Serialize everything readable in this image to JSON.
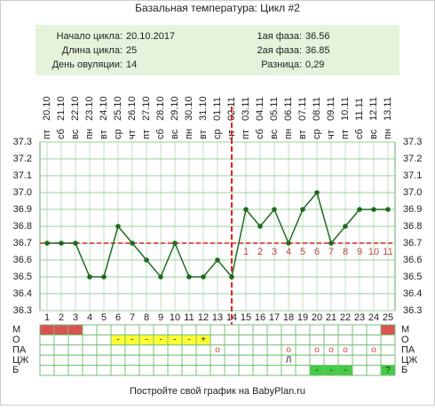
{
  "title": "Базальная температура: Цикл #2",
  "info": {
    "left": [
      {
        "label": "Начало цикла:",
        "value": "20.10.2017"
      },
      {
        "label": "Длина цикла:",
        "value": "25"
      },
      {
        "label": "День овуляции:",
        "value": "14"
      }
    ],
    "right": [
      {
        "label": "1ая фаза:",
        "value": "36.56"
      },
      {
        "label": "2ая фаза:",
        "value": "36.85"
      },
      {
        "label": "Разница:",
        "value": "0,29"
      }
    ]
  },
  "chart_data": {
    "type": "line",
    "x": [
      1,
      2,
      3,
      4,
      5,
      6,
      7,
      8,
      9,
      10,
      11,
      12,
      13,
      14,
      15,
      16,
      17,
      18,
      19,
      20,
      21,
      22,
      23,
      24,
      25
    ],
    "dates": [
      "20.10",
      "21.10",
      "22.10",
      "23.10",
      "24.10",
      "25.10",
      "26.10",
      "27.10",
      "28.10",
      "29.10",
      "30.10",
      "31.10",
      "01.11",
      "02.11",
      "03.11",
      "04.11",
      "05.11",
      "06.11",
      "07.11",
      "08.11",
      "09.11",
      "10.11",
      "11.11",
      "12.11",
      "13.11"
    ],
    "weekdays": [
      "пт",
      "сб",
      "вс",
      "пн",
      "вт",
      "ср",
      "чт",
      "пт",
      "сб",
      "вс",
      "пн",
      "вт",
      "ср",
      "чт",
      "пт",
      "сб",
      "вс",
      "пн",
      "вт",
      "ср",
      "чт",
      "пт",
      "сб",
      "вс",
      "пн"
    ],
    "values": [
      36.7,
      36.7,
      36.7,
      36.5,
      36.5,
      36.8,
      36.7,
      36.6,
      36.5,
      36.7,
      36.5,
      36.5,
      36.6,
      36.5,
      36.9,
      36.8,
      36.9,
      36.7,
      36.9,
      37.0,
      36.7,
      36.8,
      36.9,
      36.9,
      36.9
    ],
    "color": "#1e6b1e",
    "ylim": [
      36.3,
      37.3
    ],
    "yticks": [
      36.3,
      36.4,
      36.5,
      36.6,
      36.7,
      36.8,
      36.9,
      {
        "value": 37,
        "label": "37.0"
      },
      37.1,
      37.2,
      37.3
    ],
    "grid": true,
    "coverline": 36.7,
    "ovulation_day": 14,
    "line_color": "#e02020",
    "luteal_days": [
      1,
      2,
      3,
      4,
      5,
      6,
      7,
      8,
      9,
      10,
      11
    ]
  },
  "table": {
    "rows": [
      {
        "label": "М",
        "cells": [
          {
            "fill": "#d9534f"
          },
          {
            "fill": "#d9534f"
          },
          {
            "fill": "#d9534f"
          },
          null,
          null,
          null,
          null,
          null,
          null,
          null,
          null,
          null,
          null,
          null,
          null,
          null,
          null,
          null,
          null,
          null,
          null,
          null,
          null,
          null,
          {
            "fill": "#d9534f"
          }
        ]
      },
      {
        "label": "О",
        "cells": [
          null,
          null,
          null,
          null,
          null,
          {
            "text": "-",
            "fill": "#ffff33"
          },
          {
            "text": "-",
            "fill": "#ffff33"
          },
          {
            "text": "-",
            "fill": "#ffff33"
          },
          {
            "text": "-",
            "fill": "#ffff33"
          },
          {
            "text": "-",
            "fill": "#ffff33"
          },
          {
            "text": "-",
            "fill": "#ffff33"
          },
          {
            "text": "+",
            "fill": "#ffff33"
          },
          null,
          null,
          null,
          null,
          null,
          null,
          null,
          null,
          null,
          null,
          null,
          null,
          null
        ]
      },
      {
        "label": "ПА",
        "cells": [
          null,
          null,
          null,
          null,
          null,
          null,
          null,
          null,
          null,
          null,
          null,
          null,
          {
            "text": "o",
            "color": "#d04040"
          },
          null,
          null,
          null,
          null,
          {
            "text": "o",
            "color": "#d04040"
          },
          null,
          {
            "text": "o",
            "color": "#d04040"
          },
          {
            "text": "o",
            "color": "#d04040"
          },
          {
            "text": "o",
            "color": "#d04040"
          },
          null,
          {
            "text": "o",
            "color": "#d04040"
          },
          null
        ]
      },
      {
        "label": "ЦЖ",
        "cells": [
          null,
          null,
          null,
          null,
          null,
          null,
          null,
          null,
          null,
          null,
          null,
          null,
          null,
          null,
          null,
          null,
          null,
          {
            "text": "Л"
          },
          null,
          null,
          null,
          null,
          null,
          null,
          null
        ]
      },
      {
        "label": "Б",
        "cells": [
          null,
          null,
          null,
          null,
          null,
          null,
          null,
          null,
          null,
          null,
          null,
          null,
          null,
          null,
          null,
          null,
          null,
          null,
          null,
          {
            "text": "-",
            "fill": "#44cc44"
          },
          {
            "text": "-",
            "fill": "#44cc44"
          },
          {
            "text": "-",
            "fill": "#44cc44"
          },
          null,
          null,
          {
            "text": "?",
            "fill": "#44cc44"
          }
        ]
      }
    ]
  },
  "footer": "Постройте свой график на BabyPlan.ru"
}
